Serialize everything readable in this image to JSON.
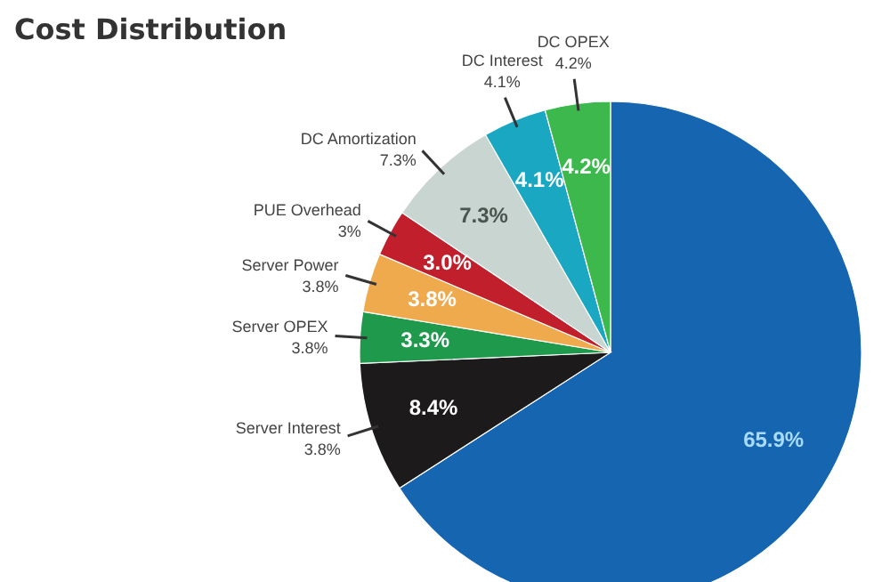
{
  "chart_data": {
    "type": "pie",
    "title": "Cost Distribution",
    "categories": [
      null,
      "Server Interest",
      "Server OPEX",
      "Server Power",
      "PUE Overhead",
      "DC Amortization",
      "DC Interest",
      "DC OPEX"
    ],
    "values": [
      65.9,
      8.4,
      3.3,
      3.8,
      3.0,
      7.3,
      4.1,
      4.2
    ],
    "value_labels": [
      "65.9%",
      "8.4%",
      "3.3%",
      "3.8%",
      "3.0%",
      "7.3%",
      "4.1%",
      "4.2%"
    ],
    "colors": [
      "#1565b0",
      "#1c1a1a",
      "#1f9a4c",
      "#f0aa4e",
      "#c01f2b",
      "#c9d5d0",
      "#1aa7c2",
      "#3db84c"
    ],
    "annotations": [
      {
        "text": "3.8%",
        "x": "Server Interest"
      },
      {
        "text": "3.8%",
        "x": "Server OPEX"
      },
      {
        "text": "3.8%",
        "x": "Server Power"
      },
      {
        "text": "3%",
        "x": "PUE Overhead"
      },
      {
        "text": "7.3%",
        "x": "DC Amortization"
      },
      {
        "text": "4.1%",
        "x": "DC Interest"
      },
      {
        "text": "4.2%",
        "x": "DC OPEX"
      }
    ]
  }
}
